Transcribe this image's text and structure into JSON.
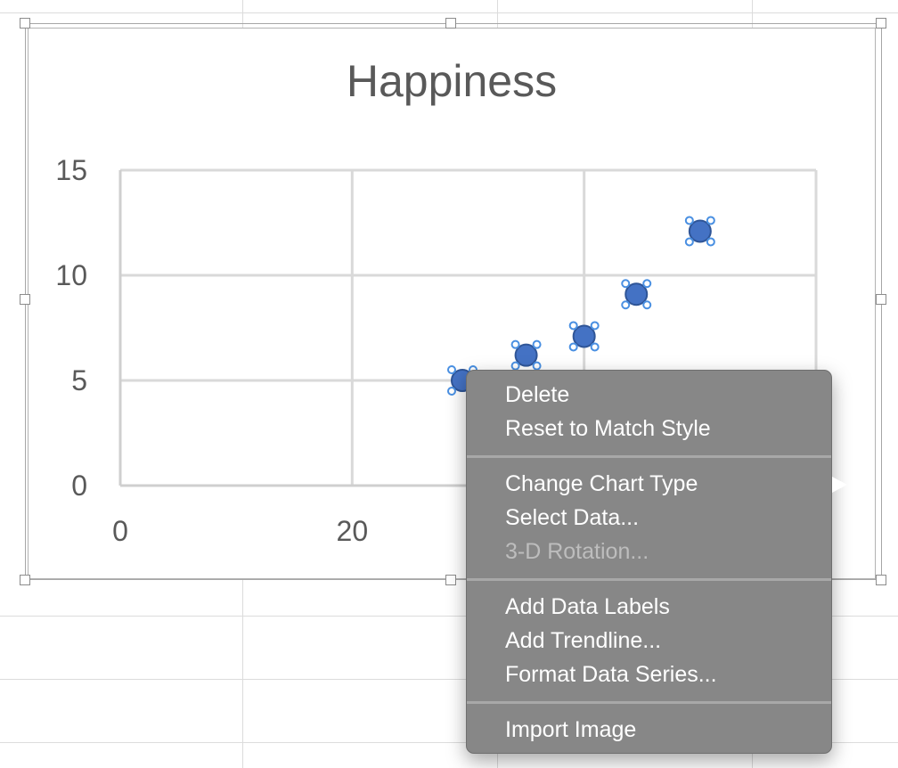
{
  "chart_data": {
    "type": "scatter",
    "title": "Happiness",
    "xlabel": "",
    "ylabel": "",
    "xlim": [
      0,
      60
    ],
    "ylim": [
      0,
      15
    ],
    "x_ticks": [
      "0",
      "20"
    ],
    "y_ticks": [
      "0",
      "5",
      "10",
      "15"
    ],
    "grid": true,
    "series": [
      {
        "x": [
          29.5,
          35,
          40,
          44.5,
          50
        ],
        "y": [
          5,
          6.2,
          7.1,
          9.1,
          12.1
        ],
        "color": "#4472c4",
        "selected": true
      }
    ]
  },
  "context_menu": {
    "items": [
      {
        "label": "Delete",
        "enabled": true
      },
      {
        "label": "Reset to Match Style",
        "enabled": true
      },
      {
        "label": "Change Chart Type",
        "enabled": true,
        "submenu": true
      },
      {
        "label": "Select Data...",
        "enabled": true
      },
      {
        "label": "3-D Rotation...",
        "enabled": false
      },
      {
        "label": "Add Data Labels",
        "enabled": true
      },
      {
        "label": "Add Trendline...",
        "enabled": true
      },
      {
        "label": "Format Data Series...",
        "enabled": true
      },
      {
        "label": "Import Image",
        "enabled": true
      }
    ]
  },
  "colors": {
    "menu_background": "#878787",
    "marker": "#4472c4",
    "gridline": "#d9d9d9",
    "axis_text": "#595959"
  }
}
